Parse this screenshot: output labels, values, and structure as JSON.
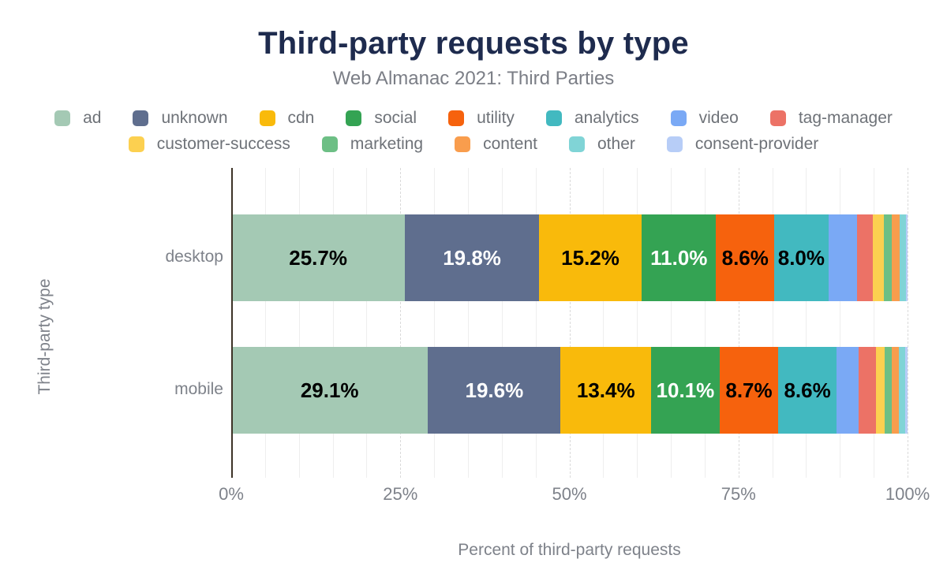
{
  "header": {
    "title": "Third-party requests by type",
    "subtitle": "Web Almanac 2021: Third Parties"
  },
  "chart_data": {
    "type": "bar",
    "stacked": true,
    "orientation": "horizontal",
    "title": "Third-party requests by type",
    "subtitle": "Web Almanac 2021: Third Parties",
    "categories": [
      "desktop",
      "mobile"
    ],
    "series": [
      {
        "name": "ad",
        "color": "#a4c9b4",
        "label_text_color": "#000000",
        "values": [
          25.7,
          29.1
        ]
      },
      {
        "name": "unknown",
        "color": "#5f6e8e",
        "label_text_color": "#ffffff",
        "values": [
          19.8,
          19.6
        ]
      },
      {
        "name": "cdn",
        "color": "#f9ba0b",
        "label_text_color": "#000000",
        "values": [
          15.2,
          13.4
        ]
      },
      {
        "name": "social",
        "color": "#34a353",
        "label_text_color": "#ffffff",
        "values": [
          11.0,
          10.1
        ]
      },
      {
        "name": "utility",
        "color": "#f6620d",
        "label_text_color": "#000000",
        "values": [
          8.6,
          8.7
        ]
      },
      {
        "name": "analytics",
        "color": "#42b9c0",
        "label_text_color": "#000000",
        "values": [
          8.0,
          8.6
        ]
      },
      {
        "name": "video",
        "color": "#7aa9f5",
        "label_text_color": "#000000",
        "values": [
          4.2,
          3.3
        ]
      },
      {
        "name": "tag-manager",
        "color": "#ec7266",
        "label_text_color": "#000000",
        "values": [
          2.4,
          2.5
        ]
      },
      {
        "name": "customer-success",
        "color": "#fcd050",
        "label_text_color": "#000000",
        "values": [
          1.6,
          1.3
        ]
      },
      {
        "name": "marketing",
        "color": "#6dbf85",
        "label_text_color": "#000000",
        "values": [
          1.2,
          1.1
        ]
      },
      {
        "name": "content",
        "color": "#f99d4d",
        "label_text_color": "#000000",
        "values": [
          1.1,
          1.0
        ]
      },
      {
        "name": "other",
        "color": "#80d4d6",
        "label_text_color": "#000000",
        "values": [
          1.0,
          1.0
        ]
      },
      {
        "name": "consent-provider",
        "color": "#b7cdf7",
        "label_text_color": "#000000",
        "values": [
          0.2,
          0.3
        ]
      }
    ],
    "xlabel": "Percent of third-party requests",
    "ylabel": "Third-party type",
    "xlim": [
      0,
      100
    ],
    "x_ticks": [
      {
        "label": "0%",
        "value": 0
      },
      {
        "label": "25%",
        "value": 25
      },
      {
        "label": "50%",
        "value": 50
      },
      {
        "label": "75%",
        "value": 75
      },
      {
        "label": "100%",
        "value": 100
      }
    ],
    "grid": {
      "enabled": true,
      "minor_step": 5,
      "major_step": 25
    },
    "legend_position": "top",
    "legend_rows": [
      [
        "ad",
        "unknown",
        "cdn",
        "social",
        "utility",
        "analytics",
        "video",
        "tag-manager"
      ],
      [
        "customer-success",
        "marketing",
        "content",
        "other",
        "consent-provider"
      ]
    ],
    "data_label_min_value": 8.0,
    "data_label_format": "{value}%"
  }
}
